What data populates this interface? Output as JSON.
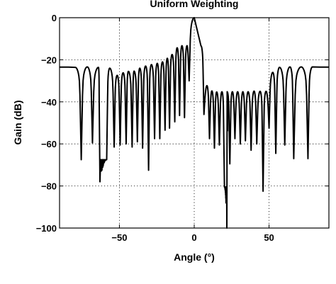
{
  "chart_data": {
    "type": "line",
    "title": "Uniform Weighting",
    "xlabel": "Angle (°)",
    "ylabel": "Gain (dB)",
    "xlim": [
      -90,
      90
    ],
    "ylim": [
      -100,
      0
    ],
    "xticks": [
      -50,
      0,
      50
    ],
    "yticks": [
      0,
      -20,
      -40,
      -60,
      -80,
      -100
    ],
    "xtick_labels": [
      "−50",
      "0",
      "50"
    ],
    "ytick_labels": [
      "0",
      "−20",
      "−40",
      "−60",
      "−80",
      "−100"
    ],
    "grid": true,
    "grid_style": "dotted",
    "line_color": "#000000",
    "series": [
      {
        "description": "array gain pattern envelope (sidelobe peaks) and nulls",
        "sidelobe_peaks": [
          [
            -90,
            -23.5
          ],
          [
            -84,
            -23.5
          ],
          [
            -79.5,
            -23.6
          ],
          [
            -71.5,
            -23.4
          ],
          [
            -64,
            -23.6
          ],
          [
            -56.5,
            -24.0
          ],
          [
            -51.5,
            -27.4
          ],
          [
            -47.5,
            -26.2
          ],
          [
            -44,
            -25.5
          ],
          [
            -40.2,
            -25.4
          ],
          [
            -36.4,
            -24.0
          ],
          [
            -32.5,
            -23.0
          ],
          [
            -28.6,
            -22.3
          ],
          [
            -24.7,
            -21.7
          ],
          [
            -21.2,
            -21.0
          ],
          [
            -18.0,
            -19.3
          ],
          [
            -14.8,
            -17.5
          ],
          [
            -11.4,
            -14.3
          ],
          [
            -8.2,
            -13.3
          ],
          [
            -4.8,
            -13.3
          ],
          [
            0,
            0
          ],
          [
            4.5,
            -13.4
          ],
          [
            8.5,
            -32.3
          ],
          [
            11.8,
            -34.8
          ],
          [
            15.0,
            -35.3
          ],
          [
            18.5,
            -35.2
          ],
          [
            22.0,
            -35.2
          ],
          [
            25.5,
            -35.2
          ],
          [
            29.0,
            -35.2
          ],
          [
            32.5,
            -35.2
          ],
          [
            36.0,
            -35.2
          ],
          [
            40.0,
            -34.9
          ],
          [
            44.0,
            -35.0
          ],
          [
            48.0,
            -35.0
          ],
          [
            52.5,
            -26.0
          ],
          [
            57.0,
            -23.6
          ],
          [
            64.0,
            -23.4
          ],
          [
            71.5,
            -23.4
          ],
          [
            79.0,
            -23.4
          ],
          [
            84.0,
            -23.5
          ],
          [
            90.0,
            -23.5
          ]
        ],
        "nulls": [
          [
            -75.5,
            -67.5
          ],
          [
            -68.0,
            -59.5
          ],
          [
            -63.0,
            -78.0
          ],
          [
            -58.5,
            -67.5
          ],
          [
            -53.5,
            -61.5
          ],
          [
            -49.5,
            -60.5
          ],
          [
            -45.5,
            -60.0
          ],
          [
            -41.5,
            -61.5
          ],
          [
            -38.0,
            -59.0
          ],
          [
            -34.5,
            -62.0
          ],
          [
            -30.5,
            -72.5
          ],
          [
            -26.5,
            -57.5
          ],
          [
            -23.0,
            -57.5
          ],
          [
            -19.5,
            -53.5
          ],
          [
            -16.5,
            -52.5
          ],
          [
            -13.0,
            -49.5
          ],
          [
            -9.8,
            -46.5
          ],
          [
            -6.5,
            -47.5
          ],
          [
            -3.4,
            -30.0
          ],
          [
            6.5,
            -46.0
          ],
          [
            10.2,
            -57.5
          ],
          [
            13.5,
            -62.0
          ],
          [
            16.8,
            -60.5
          ],
          [
            20.2,
            -80.5
          ],
          [
            21.8,
            -100.0
          ],
          [
            23.8,
            -69.5
          ],
          [
            27.2,
            -57.5
          ],
          [
            30.8,
            -60.0
          ],
          [
            34.2,
            -58.5
          ],
          [
            38.0,
            -63.0
          ],
          [
            41.8,
            -60.0
          ],
          [
            46.0,
            -82.5
          ],
          [
            50.0,
            -52.5
          ],
          [
            54.5,
            -64.5
          ],
          [
            60.5,
            -60.5
          ],
          [
            66.5,
            -67.0
          ],
          [
            76.0,
            -67.0
          ]
        ]
      }
    ]
  }
}
